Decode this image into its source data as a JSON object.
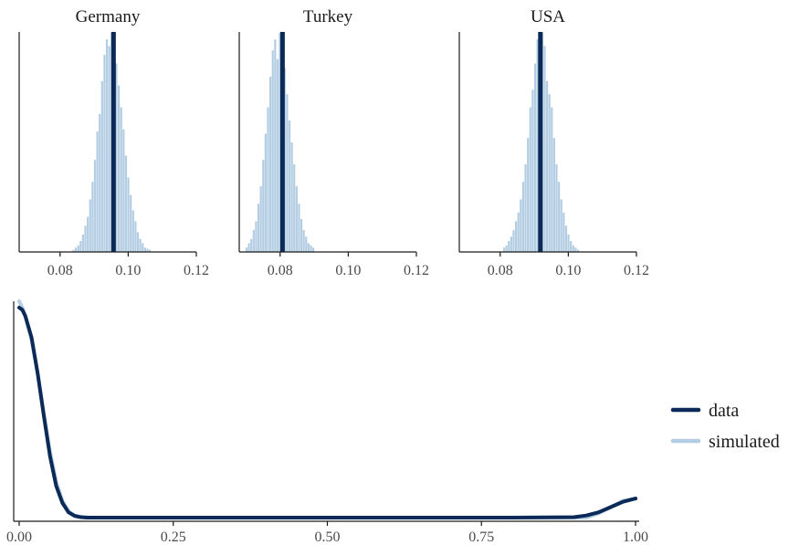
{
  "colors": {
    "data": "#0b2a57",
    "simulated": "#b3cde3",
    "axis": "#1a1a1a",
    "text": "#1a1a1a"
  },
  "chart_data": [
    {
      "type": "bar",
      "title": "Germany",
      "xlim": [
        0.068,
        0.12
      ],
      "xticks": [
        0.08,
        0.1,
        0.12
      ],
      "xtick_labels": [
        "0.08",
        "0.10",
        "0.12"
      ],
      "bin_width": 0.0007,
      "bins_center": [
        0.084,
        0.0847,
        0.0854,
        0.0861,
        0.0868,
        0.0875,
        0.0882,
        0.0889,
        0.0896,
        0.0903,
        0.091,
        0.0917,
        0.0924,
        0.0931,
        0.0938,
        0.0945,
        0.0952,
        0.0959,
        0.0966,
        0.0973,
        0.098,
        0.0987,
        0.0994,
        0.1001,
        0.1008,
        0.1015,
        0.1022,
        0.1029,
        0.1036,
        0.1043,
        0.105,
        0.1057,
        0.1064
      ],
      "bins_density": [
        0.01,
        0.02,
        0.03,
        0.05,
        0.08,
        0.12,
        0.16,
        0.24,
        0.32,
        0.42,
        0.55,
        0.63,
        0.78,
        0.9,
        0.97,
        0.94,
        1.0,
        0.93,
        0.86,
        0.76,
        0.66,
        0.56,
        0.44,
        0.34,
        0.26,
        0.19,
        0.14,
        0.09,
        0.06,
        0.04,
        0.02,
        0.015,
        0.01
      ],
      "observed": 0.0957
    },
    {
      "type": "bar",
      "title": "Turkey",
      "xlim": [
        0.068,
        0.12
      ],
      "xticks": [
        0.08,
        0.1,
        0.12
      ],
      "xtick_labels": [
        "0.08",
        "0.10",
        "0.12"
      ],
      "bin_width": 0.0007,
      "bins_center": [
        0.0702,
        0.0709,
        0.0716,
        0.0723,
        0.073,
        0.0737,
        0.0744,
        0.0751,
        0.0758,
        0.0765,
        0.0772,
        0.0779,
        0.0786,
        0.0793,
        0.08,
        0.0807,
        0.0814,
        0.0821,
        0.0828,
        0.0835,
        0.0842,
        0.0849,
        0.0856,
        0.0863,
        0.087,
        0.0877,
        0.0884,
        0.0891,
        0.0898
      ],
      "bins_density": [
        0.02,
        0.04,
        0.06,
        0.1,
        0.14,
        0.22,
        0.3,
        0.42,
        0.54,
        0.66,
        0.8,
        0.92,
        0.97,
        0.88,
        1.0,
        0.9,
        0.84,
        0.72,
        0.6,
        0.5,
        0.4,
        0.3,
        0.22,
        0.15,
        0.1,
        0.07,
        0.04,
        0.03,
        0.02
      ],
      "observed": 0.0807
    },
    {
      "type": "bar",
      "title": "USA",
      "xlim": [
        0.068,
        0.12
      ],
      "xticks": [
        0.08,
        0.1,
        0.12
      ],
      "xtick_labels": [
        "0.08",
        "0.10",
        "0.12"
      ],
      "bin_width": 0.0007,
      "bins_center": [
        0.0812,
        0.0819,
        0.0826,
        0.0833,
        0.084,
        0.0847,
        0.0854,
        0.0861,
        0.0868,
        0.0875,
        0.0882,
        0.0889,
        0.0896,
        0.0903,
        0.091,
        0.0917,
        0.0924,
        0.0931,
        0.0938,
        0.0945,
        0.0952,
        0.0959,
        0.0966,
        0.0973,
        0.098,
        0.0987,
        0.0994,
        0.1001,
        0.1008,
        0.1015,
        0.1022,
        0.1029
      ],
      "bins_density": [
        0.02,
        0.03,
        0.05,
        0.07,
        0.1,
        0.14,
        0.18,
        0.24,
        0.32,
        0.4,
        0.52,
        0.66,
        0.74,
        0.86,
        0.97,
        0.9,
        1.0,
        0.94,
        0.78,
        0.72,
        0.66,
        0.52,
        0.4,
        0.32,
        0.24,
        0.18,
        0.12,
        0.08,
        0.05,
        0.03,
        0.02,
        0.01
      ],
      "observed": 0.0918
    },
    {
      "type": "line",
      "xlim": [
        0.0,
        1.0
      ],
      "ylim": [
        0,
        1.02
      ],
      "xticks": [
        0.0,
        0.25,
        0.5,
        0.75,
        1.0
      ],
      "xtick_labels": [
        "0.00",
        "0.25",
        "0.50",
        "0.75",
        "1.00"
      ],
      "series": [
        {
          "name": "simulated",
          "x": [
            0.0,
            0.005,
            0.01,
            0.02,
            0.03,
            0.04,
            0.05,
            0.06,
            0.07,
            0.08,
            0.09,
            0.1,
            0.11,
            0.12,
            0.2,
            0.5,
            0.8,
            0.92,
            0.94,
            0.96,
            0.98,
            1.0
          ],
          "y": [
            1.02,
            0.99,
            0.95,
            0.84,
            0.68,
            0.49,
            0.31,
            0.17,
            0.08,
            0.03,
            0.01,
            0.004,
            0.001,
            0.0,
            0.0,
            0.0,
            0.0,
            0.0,
            0.02,
            0.05,
            0.08,
            0.09
          ]
        },
        {
          "name": "data",
          "x": [
            0.0,
            0.005,
            0.01,
            0.02,
            0.03,
            0.04,
            0.05,
            0.06,
            0.07,
            0.08,
            0.09,
            0.1,
            0.11,
            0.12,
            0.2,
            0.5,
            0.8,
            0.9,
            0.92,
            0.94,
            0.96,
            0.98,
            1.0
          ],
          "y": [
            0.99,
            0.98,
            0.95,
            0.85,
            0.68,
            0.48,
            0.29,
            0.15,
            0.07,
            0.025,
            0.008,
            0.002,
            0.0,
            0.0,
            0.0,
            0.0,
            0.0,
            0.002,
            0.01,
            0.025,
            0.05,
            0.075,
            0.09
          ]
        }
      ]
    }
  ],
  "legend": {
    "items": [
      {
        "label": "data",
        "color_key": "data"
      },
      {
        "label": "simulated",
        "color_key": "simulated"
      }
    ]
  }
}
